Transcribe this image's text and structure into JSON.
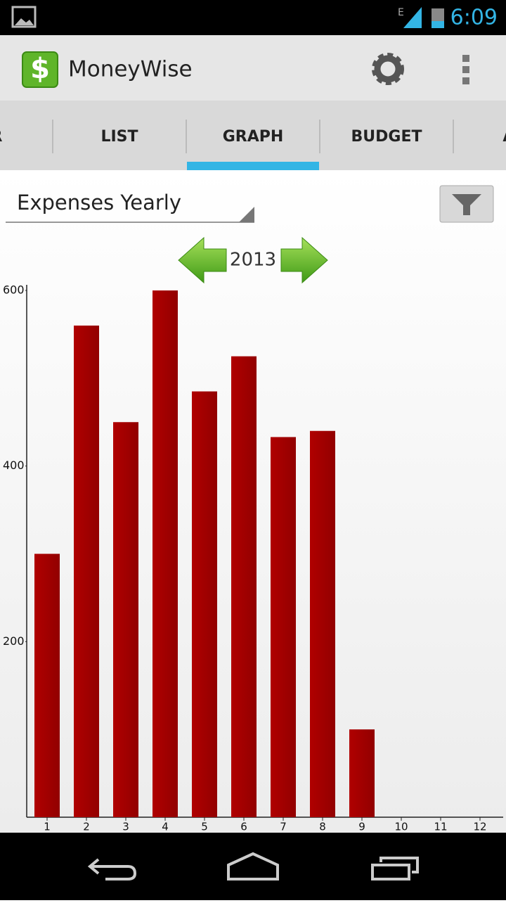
{
  "status_bar": {
    "time": "6:09",
    "network": "E"
  },
  "app_bar": {
    "title": "MoneyWise"
  },
  "tabs": [
    "TER",
    "LIST",
    "GRAPH",
    "BUDGET",
    "ACC"
  ],
  "selected_tab": 2,
  "dropdown": "Expenses Yearly",
  "year": "2013",
  "chart_data": {
    "type": "bar",
    "categories": [
      "1",
      "2",
      "3",
      "4",
      "5",
      "6",
      "7",
      "8",
      "9",
      "10",
      "11",
      "12"
    ],
    "values": [
      300,
      560,
      450,
      600,
      485,
      525,
      433,
      440,
      100,
      0,
      0,
      0
    ],
    "color": "#a80000",
    "ylim": [
      0,
      600
    ],
    "yticks": [
      200,
      400,
      600
    ],
    "grid": false
  }
}
